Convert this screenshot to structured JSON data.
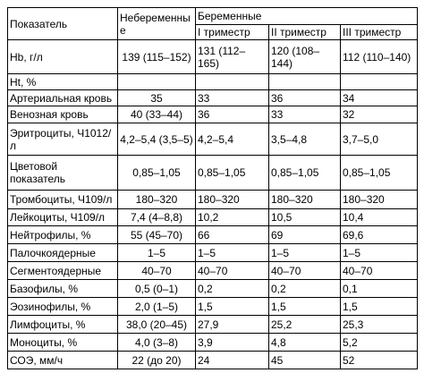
{
  "table": {
    "header": {
      "indicator": "Показатель",
      "nonpregnant": "Небеременные",
      "pregnant": "Беременные",
      "trimesters": [
        "I триместр",
        "II триместр",
        "III триместр"
      ]
    },
    "rows": [
      [
        "Hb, г/л",
        "139 (115–152)",
        "131 (112–165)",
        "120 (108–144)",
        "112 (110–140)"
      ],
      [
        "Ht, %"
      ],
      [
        "Артериальная кровь",
        "35",
        "33",
        "36",
        "34"
      ],
      [
        "Венозная кровь",
        "40 (33–44)",
        "36",
        "33",
        "32"
      ],
      [
        "Эритроциты, Ч1012/л",
        "4,2–5,4 (3,5–5)",
        "4,2–5,4",
        "3,5–4,8",
        "3,7–5,0"
      ],
      [
        "Цветовой показатель",
        "0,85–1,05",
        "0,85–1,05",
        "0,85–1,05",
        "0,85–1,05"
      ],
      [
        "Тромбоциты, Ч109/л",
        "180–320",
        "180–320",
        "180–320",
        "180–320"
      ],
      [
        "Лейкоциты, Ч109/л",
        "7,4 (4–8,8)",
        "10,2",
        "10,5",
        "10,4"
      ],
      [
        "Нейтрофилы, %",
        "55 (45–70)",
        "66",
        "69",
        "69,6"
      ],
      [
        "Палочкоядерные",
        "1–5",
        "1–5",
        "1–5",
        "1–5"
      ],
      [
        "Сегментоядерные",
        "40–70",
        "40–70",
        "40–70",
        "40–70"
      ],
      [
        "Базофилы, %",
        "0,5 (0–1)",
        "0,2",
        "0,2",
        "0,1"
      ],
      [
        "Эозинофилы, %",
        "2,0 (1–5)",
        "1,5",
        "1,5",
        "1,5"
      ],
      [
        "Лимфоциты, %",
        "38,0 (20–45)",
        "27,9",
        "25,2",
        "25,3"
      ],
      [
        "Моноциты, %",
        "4,0 (3–8)",
        "3,9",
        "4,8",
        "5,2"
      ],
      [
        "СОЭ, мм/ч",
        "22 (до 20)",
        "24",
        "45",
        "52"
      ]
    ]
  }
}
